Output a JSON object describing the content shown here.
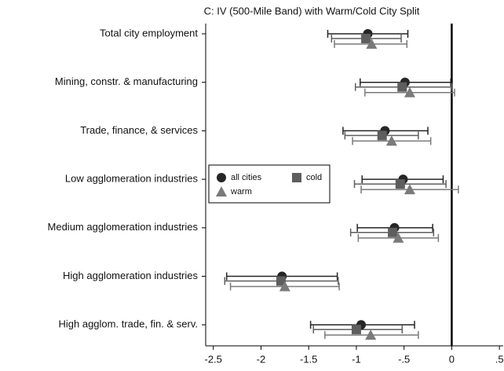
{
  "chart_data": {
    "type": "coefplot",
    "title": "C: IV (500-Mile Band) with Warm/Cold City Split",
    "categories": [
      "Total city employment",
      "Mining, constr. & manufacturing",
      "Trade, finance, & services",
      "Low agglomeration industries",
      "Medium agglomeration industries",
      "High agglomeration industries",
      "High agglom. trade, fin. & serv."
    ],
    "series": [
      {
        "name": "all cities",
        "color": "#262626",
        "marker": "circle",
        "values": [
          -0.88,
          -0.49,
          -0.7,
          -0.51,
          -0.6,
          -1.78,
          -0.95
        ],
        "low": [
          -1.3,
          -0.96,
          -1.14,
          -0.94,
          -0.99,
          -2.36,
          -1.48
        ],
        "high": [
          -0.46,
          -0.01,
          -0.25,
          -0.09,
          -0.2,
          -1.2,
          -0.39
        ]
      },
      {
        "name": "cold",
        "color": "#5e5e5e",
        "marker": "square",
        "values": [
          -0.9,
          -0.52,
          -0.73,
          -0.54,
          -0.62,
          -1.79,
          -1.0
        ],
        "low": [
          -1.26,
          -1.01,
          -1.12,
          -1.02,
          -1.06,
          -2.38,
          -1.45
        ],
        "high": [
          -0.53,
          0.0,
          -0.35,
          -0.06,
          -0.19,
          -1.19,
          -0.52
        ]
      },
      {
        "name": "warm",
        "color": "#7a7a7a",
        "marker": "triangle",
        "values": [
          -0.84,
          -0.44,
          -0.63,
          -0.44,
          -0.56,
          -1.75,
          -0.85
        ],
        "low": [
          -1.23,
          -0.91,
          -1.04,
          -0.95,
          -0.98,
          -2.32,
          -1.33
        ],
        "high": [
          -0.47,
          0.03,
          -0.22,
          0.07,
          -0.14,
          -1.18,
          -0.35
        ]
      }
    ],
    "xlim": [
      -2.58,
      0.54
    ],
    "xticks": [
      -2.5,
      -2,
      -1.5,
      -1,
      {
        "value": -0.5,
        "label": "-.5"
      },
      0,
      {
        "value": 0.5,
        "label": ".5"
      }
    ],
    "zero_line": true,
    "grid": false,
    "legend": "left"
  }
}
